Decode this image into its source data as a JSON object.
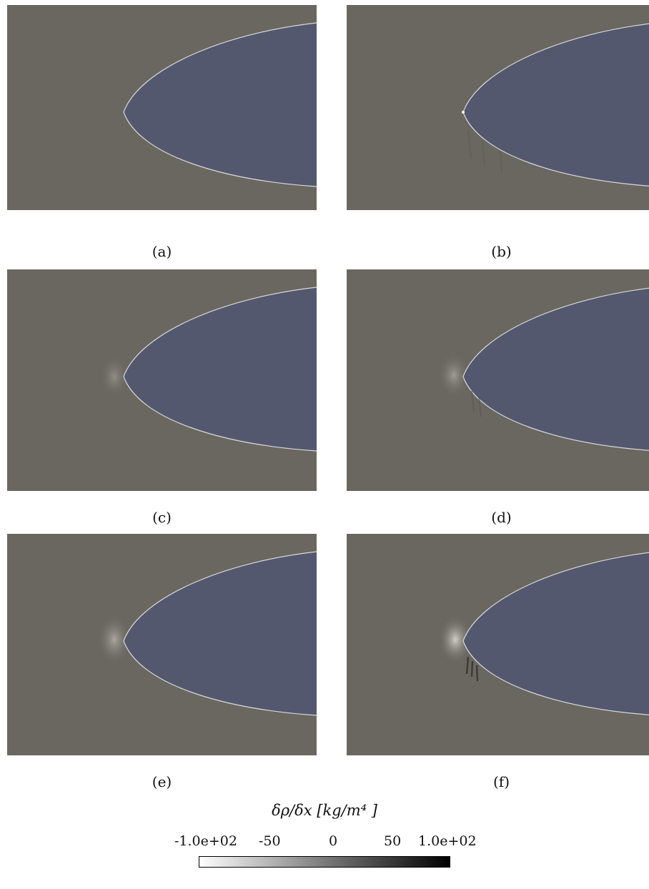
{
  "panels": [
    {
      "label": "(a)"
    },
    {
      "label": "(b)"
    },
    {
      "label": "(c)"
    },
    {
      "label": "(d)"
    },
    {
      "label": "(e)"
    },
    {
      "label": "(f)"
    }
  ],
  "colors": {
    "background_field": "#696760",
    "body_fill": "#54586f",
    "edge_highlight": "#d9d9d9"
  },
  "colorbar": {
    "title": "δρ/δx [kg/m⁴ ]",
    "ticks": [
      "-1.0e+02",
      "-50",
      "0",
      "50",
      "1.0e+02"
    ],
    "colormap": "white-to-black grayscale"
  }
}
